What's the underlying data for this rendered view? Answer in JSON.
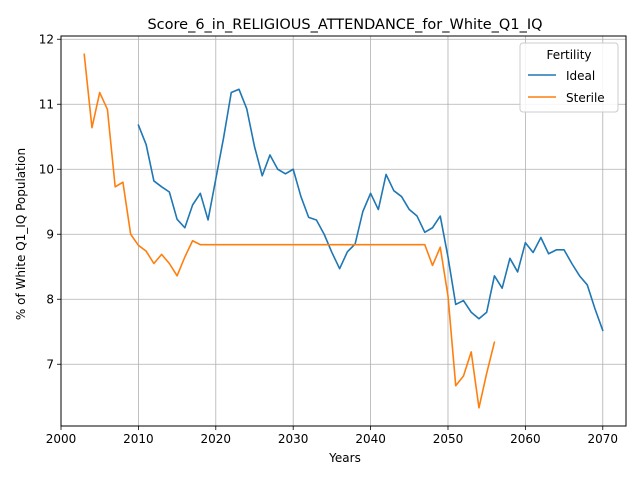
{
  "chart_data": {
    "type": "line",
    "title": "Score_6_in_RELIGIOUS_ATTENDANCE_for_White_Q1_IQ",
    "xlabel": "Years",
    "ylabel": "% of White Q1_IQ Population",
    "xlim": [
      2000,
      2073
    ],
    "ylim": [
      6.05,
      12.05
    ],
    "xticks": [
      2000,
      2010,
      2020,
      2030,
      2040,
      2050,
      2060,
      2070
    ],
    "yticks": [
      7,
      8,
      9,
      10,
      11,
      12
    ],
    "grid": true,
    "legend": {
      "title": "Fertility",
      "placement": "top-right"
    },
    "series": [
      {
        "name": "Ideal",
        "color": "#1f77b4",
        "x": [
          2010,
          2011,
          2012,
          2013,
          2014,
          2015,
          2016,
          2017,
          2018,
          2019,
          2020,
          2021,
          2022,
          2023,
          2024,
          2025,
          2026,
          2027,
          2028,
          2029,
          2030,
          2031,
          2032,
          2033,
          2034,
          2035,
          2036,
          2037,
          2038,
          2039,
          2040,
          2041,
          2042,
          2043,
          2044,
          2045,
          2046,
          2047,
          2048,
          2049,
          2050,
          2051,
          2052,
          2053,
          2054,
          2055,
          2056,
          2057,
          2058,
          2059,
          2060,
          2061,
          2062,
          2063,
          2064,
          2065,
          2066,
          2067,
          2068,
          2069,
          2070
        ],
        "values": [
          10.68,
          10.38,
          9.82,
          9.73,
          9.65,
          9.23,
          9.1,
          9.45,
          9.63,
          9.22,
          9.85,
          10.48,
          11.18,
          11.23,
          10.93,
          10.35,
          9.9,
          10.22,
          10.0,
          9.93,
          10.0,
          9.58,
          9.26,
          9.22,
          9.0,
          8.72,
          8.47,
          8.73,
          8.85,
          9.35,
          9.63,
          9.38,
          9.92,
          9.67,
          9.58,
          9.38,
          9.28,
          9.03,
          9.1,
          9.28,
          8.65,
          7.92,
          7.98,
          7.8,
          7.7,
          7.8,
          8.36,
          8.17,
          8.63,
          8.42,
          8.87,
          8.72,
          8.95,
          8.7,
          8.76,
          8.76,
          8.55,
          8.36,
          8.22,
          7.85,
          7.52
        ]
      },
      {
        "name": "Sterile",
        "color": "#ff7f0e",
        "x": [
          2003,
          2004,
          2005,
          2006,
          2007,
          2008,
          2009,
          2010,
          2011,
          2012,
          2013,
          2014,
          2015,
          2016,
          2017,
          2018,
          2019,
          2020,
          2021,
          2022,
          2023,
          2024,
          2025,
          2026,
          2027,
          2028,
          2029,
          2030,
          2031,
          2032,
          2033,
          2034,
          2035,
          2036,
          2037,
          2038,
          2039,
          2040,
          2041,
          2042,
          2043,
          2044,
          2045,
          2046,
          2047,
          2048,
          2049,
          2050,
          2051,
          2052,
          2053,
          2054,
          2055,
          2056
        ],
        "values": [
          11.77,
          10.64,
          11.18,
          10.92,
          9.73,
          9.8,
          9.0,
          8.83,
          8.74,
          8.55,
          8.69,
          8.55,
          8.36,
          8.65,
          8.9,
          8.84,
          8.84,
          8.84,
          8.84,
          8.84,
          8.84,
          8.84,
          8.84,
          8.84,
          8.84,
          8.84,
          8.84,
          8.84,
          8.84,
          8.84,
          8.84,
          8.84,
          8.84,
          8.84,
          8.84,
          8.84,
          8.84,
          8.84,
          8.84,
          8.84,
          8.84,
          8.84,
          8.84,
          8.84,
          8.84,
          8.52,
          8.8,
          8.05,
          6.67,
          6.82,
          7.19,
          6.33,
          6.86,
          7.34
        ]
      }
    ]
  }
}
